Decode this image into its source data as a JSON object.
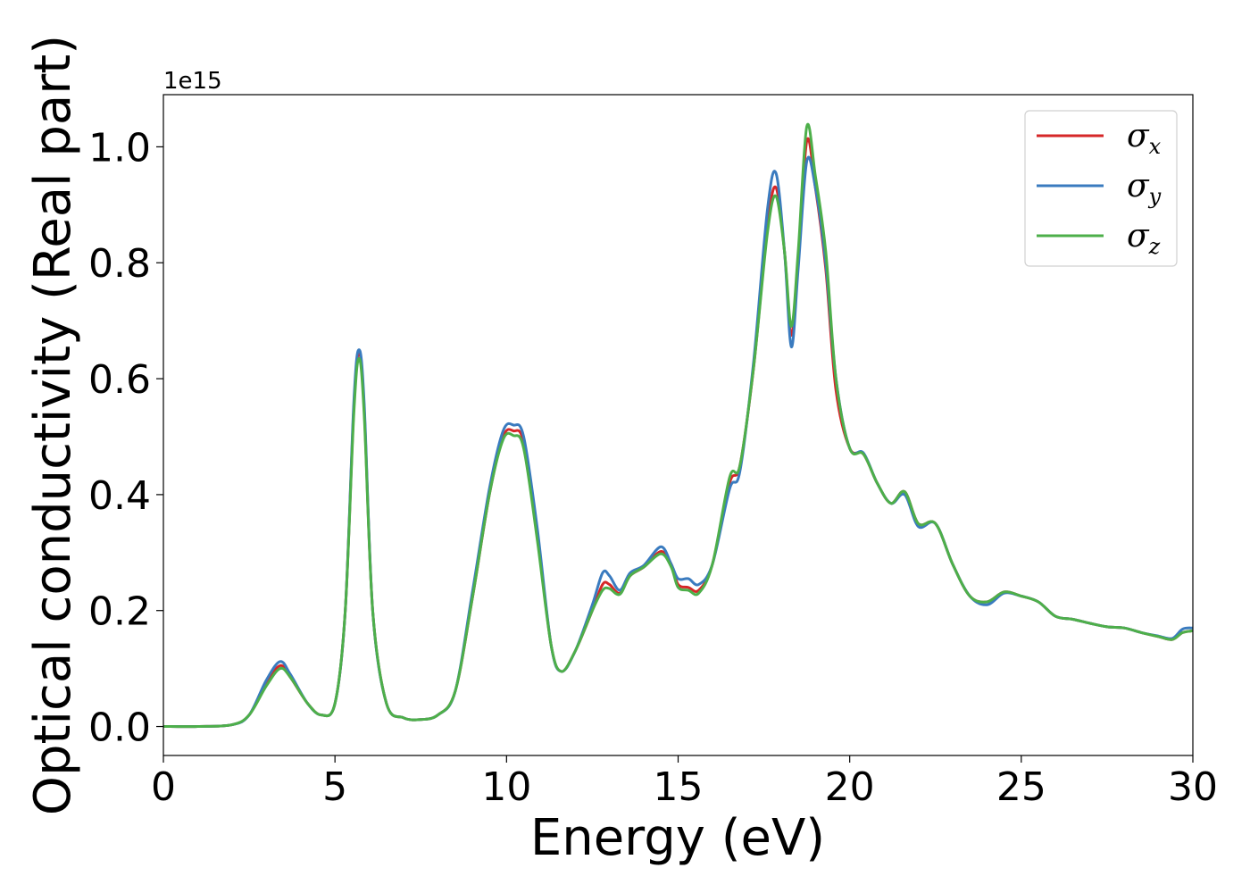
{
  "chart_data": {
    "type": "line",
    "xlabel": "Energy (eV)",
    "ylabel": "Optical conductivity (Real part)",
    "offset_text": "1e15",
    "xlim": [
      0,
      30
    ],
    "ylim": [
      -0.05,
      1.09
    ],
    "xticks": [
      0,
      5,
      10,
      15,
      20,
      25,
      30
    ],
    "xtick_labels": [
      "0",
      "5",
      "10",
      "15",
      "20",
      "25",
      "30"
    ],
    "yticks": [
      0.0,
      0.2,
      0.4,
      0.6,
      0.8,
      1.0
    ],
    "ytick_labels": [
      "0.0",
      "0.2",
      "0.4",
      "0.6",
      "0.8",
      "1.0"
    ],
    "grid": false,
    "legend": "top-right",
    "series": [
      {
        "name": "σx",
        "symbol": "σ",
        "subscript": "x",
        "color": "#d62728",
        "points": [
          [
            0,
            0.0
          ],
          [
            1,
            0.0
          ],
          [
            2,
            0.003
          ],
          [
            2.5,
            0.02
          ],
          [
            3,
            0.075
          ],
          [
            3.4,
            0.105
          ],
          [
            3.7,
            0.085
          ],
          [
            4.2,
            0.04
          ],
          [
            4.6,
            0.02
          ],
          [
            5,
            0.04
          ],
          [
            5.3,
            0.2
          ],
          [
            5.55,
            0.55
          ],
          [
            5.7,
            0.645
          ],
          [
            5.85,
            0.55
          ],
          [
            6.1,
            0.2
          ],
          [
            6.5,
            0.04
          ],
          [
            7,
            0.015
          ],
          [
            7.5,
            0.012
          ],
          [
            8,
            0.02
          ],
          [
            8.5,
            0.06
          ],
          [
            9,
            0.22
          ],
          [
            9.5,
            0.4
          ],
          [
            9.9,
            0.5
          ],
          [
            10.2,
            0.51
          ],
          [
            10.5,
            0.49
          ],
          [
            10.9,
            0.33
          ],
          [
            11.3,
            0.14
          ],
          [
            11.6,
            0.095
          ],
          [
            12,
            0.13
          ],
          [
            12.5,
            0.2
          ],
          [
            12.8,
            0.245
          ],
          [
            13,
            0.245
          ],
          [
            13.3,
            0.23
          ],
          [
            13.6,
            0.26
          ],
          [
            14,
            0.275
          ],
          [
            14.5,
            0.302
          ],
          [
            14.8,
            0.28
          ],
          [
            15,
            0.245
          ],
          [
            15.3,
            0.24
          ],
          [
            15.6,
            0.235
          ],
          [
            16,
            0.28
          ],
          [
            16.5,
            0.42
          ],
          [
            16.8,
            0.45
          ],
          [
            17.2,
            0.62
          ],
          [
            17.6,
            0.86
          ],
          [
            17.85,
            0.93
          ],
          [
            18.1,
            0.82
          ],
          [
            18.3,
            0.675
          ],
          [
            18.5,
            0.8
          ],
          [
            18.75,
            1.01
          ],
          [
            19,
            0.93
          ],
          [
            19.3,
            0.79
          ],
          [
            19.6,
            0.58
          ],
          [
            20,
            0.48
          ],
          [
            20.4,
            0.47
          ],
          [
            20.8,
            0.42
          ],
          [
            21.2,
            0.385
          ],
          [
            21.6,
            0.405
          ],
          [
            22,
            0.35
          ],
          [
            22.5,
            0.35
          ],
          [
            23,
            0.28
          ],
          [
            23.5,
            0.225
          ],
          [
            24,
            0.215
          ],
          [
            24.5,
            0.232
          ],
          [
            25,
            0.225
          ],
          [
            25.5,
            0.215
          ],
          [
            26,
            0.19
          ],
          [
            26.5,
            0.185
          ],
          [
            27,
            0.178
          ],
          [
            27.5,
            0.172
          ],
          [
            28,
            0.17
          ],
          [
            28.5,
            0.162
          ],
          [
            29,
            0.155
          ],
          [
            29.4,
            0.15
          ],
          [
            29.7,
            0.162
          ],
          [
            30,
            0.165
          ]
        ]
      },
      {
        "name": "σy",
        "symbol": "σ",
        "subscript": "y",
        "color": "#3a7bbf",
        "points": [
          [
            0,
            0.0
          ],
          [
            1,
            0.0
          ],
          [
            2,
            0.003
          ],
          [
            2.5,
            0.02
          ],
          [
            3,
            0.08
          ],
          [
            3.4,
            0.112
          ],
          [
            3.7,
            0.09
          ],
          [
            4.2,
            0.04
          ],
          [
            4.6,
            0.02
          ],
          [
            5,
            0.04
          ],
          [
            5.3,
            0.2
          ],
          [
            5.55,
            0.56
          ],
          [
            5.7,
            0.65
          ],
          [
            5.85,
            0.56
          ],
          [
            6.1,
            0.2
          ],
          [
            6.5,
            0.04
          ],
          [
            7,
            0.015
          ],
          [
            7.5,
            0.012
          ],
          [
            8,
            0.02
          ],
          [
            8.5,
            0.06
          ],
          [
            9,
            0.23
          ],
          [
            9.5,
            0.41
          ],
          [
            9.9,
            0.51
          ],
          [
            10.2,
            0.52
          ],
          [
            10.5,
            0.5
          ],
          [
            10.9,
            0.34
          ],
          [
            11.3,
            0.14
          ],
          [
            11.6,
            0.095
          ],
          [
            12,
            0.13
          ],
          [
            12.5,
            0.21
          ],
          [
            12.8,
            0.265
          ],
          [
            13,
            0.26
          ],
          [
            13.3,
            0.235
          ],
          [
            13.6,
            0.265
          ],
          [
            14,
            0.278
          ],
          [
            14.5,
            0.31
          ],
          [
            14.8,
            0.28
          ],
          [
            15,
            0.255
          ],
          [
            15.3,
            0.255
          ],
          [
            15.6,
            0.245
          ],
          [
            16,
            0.28
          ],
          [
            16.5,
            0.41
          ],
          [
            16.8,
            0.44
          ],
          [
            17.2,
            0.63
          ],
          [
            17.6,
            0.89
          ],
          [
            17.85,
            0.955
          ],
          [
            18.1,
            0.82
          ],
          [
            18.3,
            0.655
          ],
          [
            18.5,
            0.79
          ],
          [
            18.75,
            0.975
          ],
          [
            19,
            0.93
          ],
          [
            19.3,
            0.8
          ],
          [
            19.6,
            0.6
          ],
          [
            20,
            0.48
          ],
          [
            20.4,
            0.472
          ],
          [
            20.8,
            0.42
          ],
          [
            21.2,
            0.385
          ],
          [
            21.6,
            0.4
          ],
          [
            22,
            0.345
          ],
          [
            22.5,
            0.35
          ],
          [
            23,
            0.28
          ],
          [
            23.5,
            0.225
          ],
          [
            24,
            0.21
          ],
          [
            24.5,
            0.23
          ],
          [
            25,
            0.225
          ],
          [
            25.5,
            0.215
          ],
          [
            26,
            0.19
          ],
          [
            26.5,
            0.185
          ],
          [
            27,
            0.178
          ],
          [
            27.5,
            0.172
          ],
          [
            28,
            0.17
          ],
          [
            28.5,
            0.162
          ],
          [
            29,
            0.156
          ],
          [
            29.4,
            0.152
          ],
          [
            29.7,
            0.168
          ],
          [
            30,
            0.17
          ]
        ]
      },
      {
        "name": "σz",
        "symbol": "σ",
        "subscript": "z",
        "color": "#4daf4a",
        "points": [
          [
            0,
            0.0
          ],
          [
            1,
            0.0
          ],
          [
            2,
            0.003
          ],
          [
            2.5,
            0.02
          ],
          [
            3,
            0.07
          ],
          [
            3.4,
            0.1
          ],
          [
            3.7,
            0.085
          ],
          [
            4.2,
            0.04
          ],
          [
            4.6,
            0.02
          ],
          [
            5,
            0.04
          ],
          [
            5.3,
            0.2
          ],
          [
            5.55,
            0.54
          ],
          [
            5.7,
            0.635
          ],
          [
            5.85,
            0.54
          ],
          [
            6.1,
            0.2
          ],
          [
            6.5,
            0.04
          ],
          [
            7,
            0.015
          ],
          [
            7.5,
            0.012
          ],
          [
            8,
            0.02
          ],
          [
            8.5,
            0.06
          ],
          [
            9,
            0.22
          ],
          [
            9.5,
            0.4
          ],
          [
            9.9,
            0.495
          ],
          [
            10.2,
            0.502
          ],
          [
            10.5,
            0.48
          ],
          [
            10.9,
            0.32
          ],
          [
            11.3,
            0.14
          ],
          [
            11.6,
            0.095
          ],
          [
            12,
            0.13
          ],
          [
            12.5,
            0.2
          ],
          [
            12.8,
            0.235
          ],
          [
            13,
            0.238
          ],
          [
            13.3,
            0.228
          ],
          [
            13.6,
            0.26
          ],
          [
            14,
            0.275
          ],
          [
            14.5,
            0.298
          ],
          [
            14.8,
            0.275
          ],
          [
            15,
            0.24
          ],
          [
            15.3,
            0.235
          ],
          [
            15.6,
            0.23
          ],
          [
            16,
            0.28
          ],
          [
            16.5,
            0.43
          ],
          [
            16.8,
            0.45
          ],
          [
            17.2,
            0.62
          ],
          [
            17.6,
            0.85
          ],
          [
            17.85,
            0.915
          ],
          [
            18.1,
            0.82
          ],
          [
            18.3,
            0.69
          ],
          [
            18.5,
            0.82
          ],
          [
            18.75,
            1.035
          ],
          [
            19,
            0.95
          ],
          [
            19.3,
            0.82
          ],
          [
            19.6,
            0.6
          ],
          [
            20,
            0.48
          ],
          [
            20.4,
            0.47
          ],
          [
            20.8,
            0.42
          ],
          [
            21.2,
            0.385
          ],
          [
            21.6,
            0.405
          ],
          [
            22,
            0.35
          ],
          [
            22.5,
            0.35
          ],
          [
            23,
            0.28
          ],
          [
            23.5,
            0.225
          ],
          [
            24,
            0.215
          ],
          [
            24.5,
            0.232
          ],
          [
            25,
            0.225
          ],
          [
            25.5,
            0.215
          ],
          [
            26,
            0.19
          ],
          [
            26.5,
            0.185
          ],
          [
            27,
            0.178
          ],
          [
            27.5,
            0.172
          ],
          [
            28,
            0.17
          ],
          [
            28.5,
            0.162
          ],
          [
            29,
            0.155
          ],
          [
            29.4,
            0.15
          ],
          [
            29.7,
            0.162
          ],
          [
            30,
            0.165
          ]
        ]
      }
    ]
  }
}
